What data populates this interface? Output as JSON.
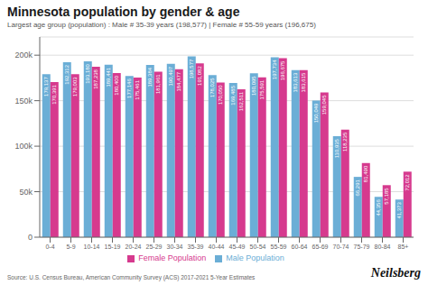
{
  "chart_data": {
    "type": "bar",
    "title": "Minnesota population by gender & age",
    "subtitle": "Largest age group (population) : Male # 35-39 years (198,577) | Female # 55-59 years (196,675)",
    "annotations": [
      "Source: U.S. Census Bureau, American Community Survey (ACS) 2017-2021 5-Year Estimates",
      "Neilsberg"
    ],
    "categories": [
      "0-4",
      "5-9",
      "10-14",
      "15-19",
      "20-24",
      "25-29",
      "30-34",
      "35-39",
      "40-44",
      "45-49",
      "50-54",
      "55-59",
      "60-64",
      "65-69",
      "70-74",
      "75-79",
      "80-84",
      "85+"
    ],
    "series": [
      {
        "name": "Male Population",
        "color": "#6baed6",
        "values": [
          179137,
          192312,
          193180,
          189441,
          177146,
          189384,
          190497,
          198577,
          178025,
          169485,
          180095,
          197734,
          183613,
          150049,
          110935,
          66291,
          44356,
          41373
        ],
        "value_labels": [
          "179,137",
          "192,312",
          "193,180",
          "189,441",
          "177,146",
          "189,384",
          "190,497",
          "198,577",
          "178,025",
          "169,485",
          "180,095",
          "197,734",
          "183,613",
          "150,049",
          "110,935",
          "66,291",
          "44,356",
          "41,373"
        ]
      },
      {
        "name": "Female Population",
        "color": "#d63a8e",
        "values": [
          170391,
          179003,
          187238,
          180400,
          175461,
          181961,
          184477,
          191082,
          170050,
          162511,
          175591,
          196675,
          183615,
          159045,
          118235,
          81490,
          57185,
          72012
        ],
        "value_labels": [
          "170,391",
          "179,003",
          "187,238",
          "180,400",
          "175,461",
          "181,961",
          "184,477",
          "191,082",
          "170,050",
          "162,511",
          "175,591",
          "196,675",
          "183,615",
          "159,045",
          "118,235",
          "81,490",
          "57,185",
          "72,012"
        ]
      }
    ],
    "ylim": [
      0,
      220000
    ],
    "yticks": [
      0,
      {
        "value": 50000,
        "label": "50k"
      },
      {
        "value": 100000,
        "label": "100k"
      },
      {
        "value": 150000,
        "label": "150k"
      },
      {
        "value": 200000,
        "label": "200k"
      }
    ],
    "grid": true,
    "legend": "bottom",
    "data_labels": true
  }
}
